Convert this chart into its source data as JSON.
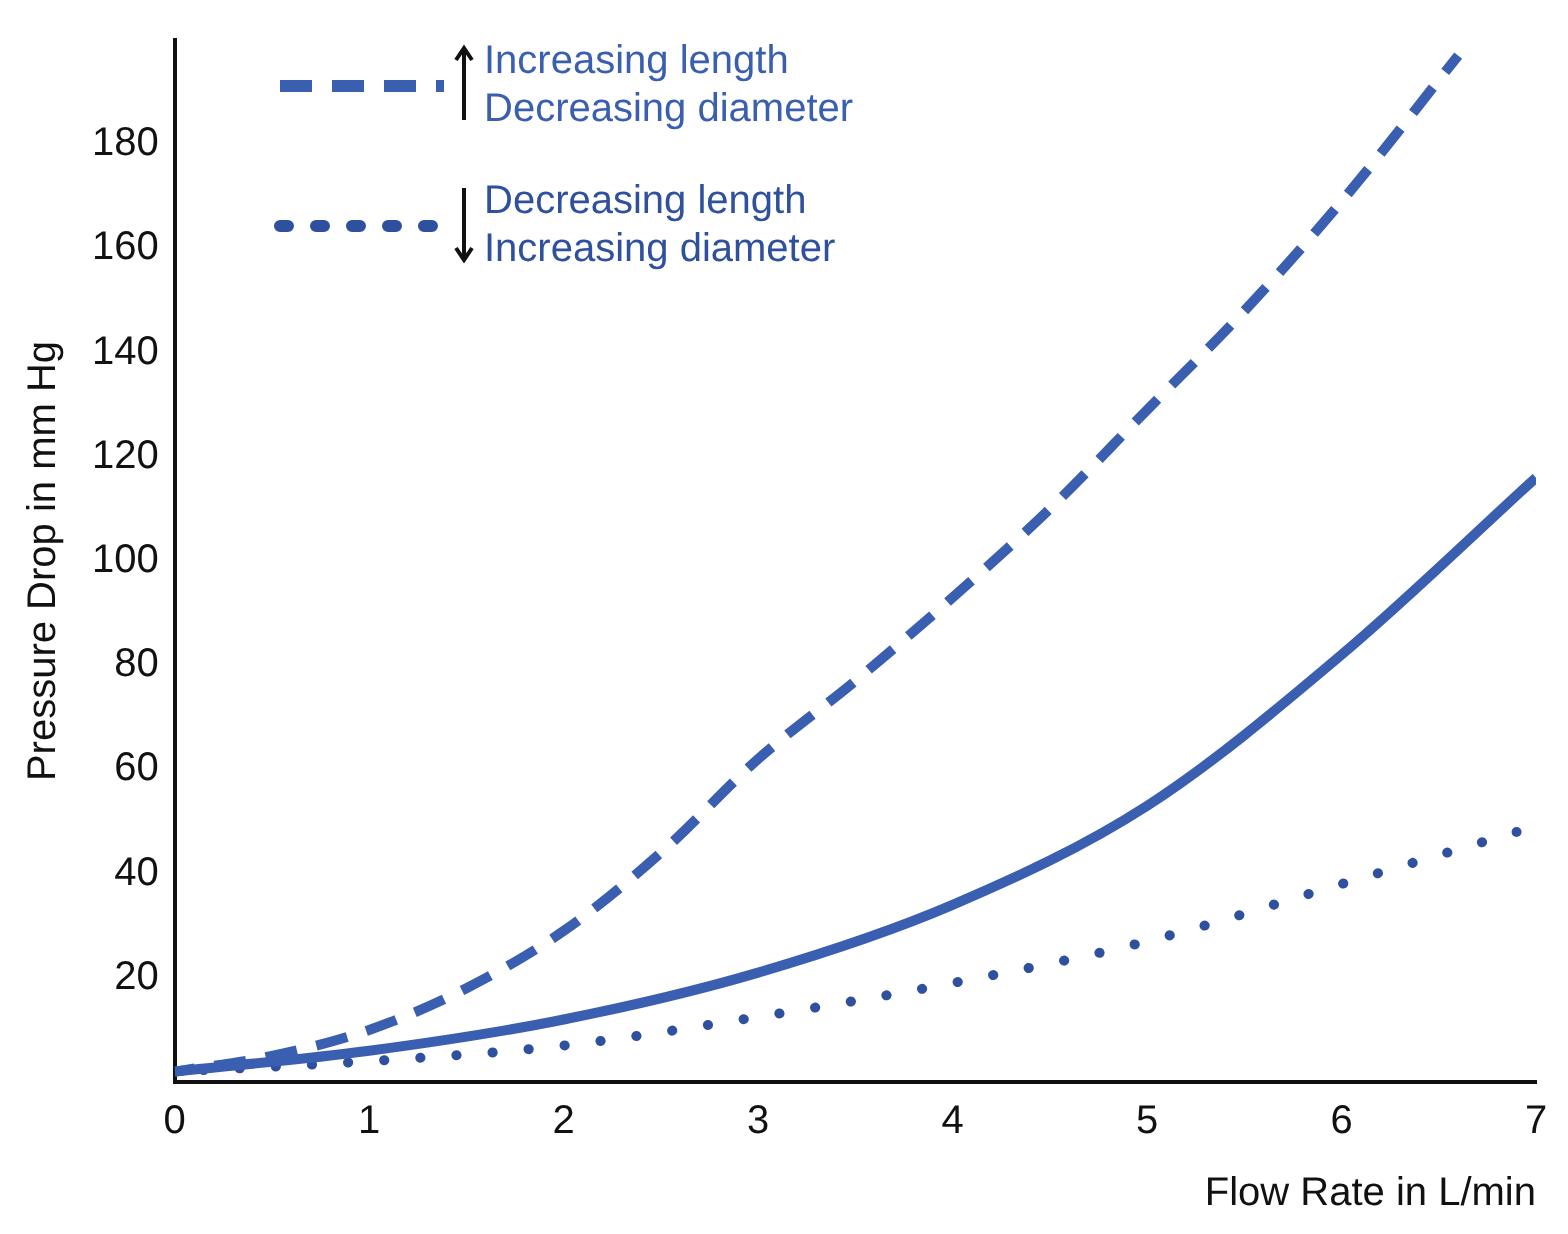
{
  "chart_data": {
    "type": "line",
    "xlabel": "Flow Rate in L/min",
    "ylabel": "Pressure Drop in mm Hg",
    "xlim": [
      0,
      7
    ],
    "xticks": [
      0,
      1,
      2,
      3,
      4,
      5,
      6,
      7
    ],
    "ylim": [
      0,
      200
    ],
    "yticks": [
      20,
      40,
      60,
      80,
      100,
      120,
      140,
      160,
      180
    ],
    "grid": false,
    "legend": "top left",
    "marker": "none",
    "series": [
      {
        "name": "Increasing length\nDecreasing diameter",
        "color": "#3a5fb0",
        "line_style": "dashed",
        "x": [
          0,
          0.5,
          1,
          1.5,
          2,
          2.5,
          3,
          3.5,
          4,
          4.5,
          5,
          5.5,
          6,
          6.6
        ],
        "values": [
          2,
          5,
          10,
          18,
          29,
          44,
          62,
          77,
          93,
          110,
          129,
          148,
          169,
          197
        ]
      },
      {
        "color": "#3a5fb0",
        "line_style": "solid",
        "x": [
          0,
          1,
          2,
          3,
          4,
          5,
          6,
          7
        ],
        "values": [
          2,
          6,
          12,
          21,
          34,
          53,
          82,
          116
        ]
      },
      {
        "name": "Decreasing length\nIncreasing diameter",
        "color": "#2e509e",
        "line_style": "dotted",
        "x": [
          0,
          1,
          2,
          3,
          4,
          5,
          6,
          6.9
        ],
        "values": [
          2,
          4,
          7,
          12.5,
          19,
          27,
          38,
          48
        ]
      }
    ]
  }
}
